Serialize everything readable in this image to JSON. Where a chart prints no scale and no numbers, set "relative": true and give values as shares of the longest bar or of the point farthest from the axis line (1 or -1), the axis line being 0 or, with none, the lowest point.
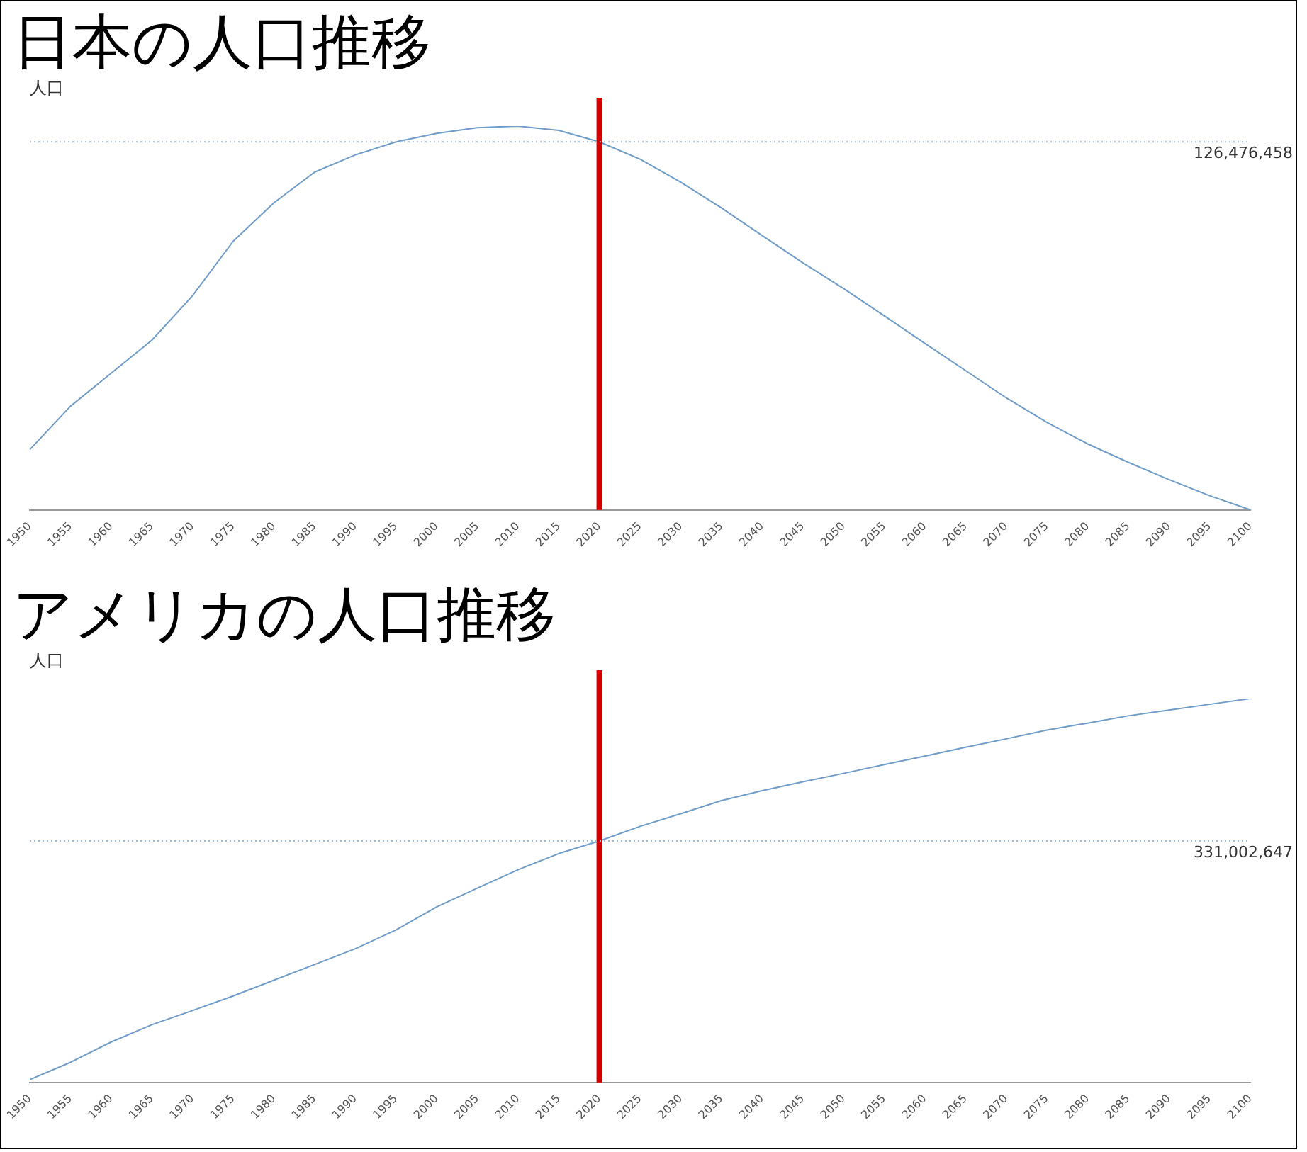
{
  "chart_data": [
    {
      "type": "line",
      "title": "日本の人口推移",
      "ylabel": "人口",
      "relative": true,
      "color": "#6f9cc8",
      "marker": "none",
      "x": [
        1950,
        1955,
        1960,
        1965,
        1970,
        1975,
        1980,
        1985,
        1990,
        1995,
        2000,
        2005,
        2010,
        2015,
        2020,
        2025,
        2030,
        2035,
        2040,
        2045,
        2050,
        2055,
        2060,
        2065,
        2070,
        2075,
        2080,
        2085,
        2090,
        2095,
        2100
      ],
      "values": [
        0.157,
        0.27,
        0.356,
        0.442,
        0.558,
        0.7,
        0.8,
        0.88,
        0.925,
        0.959,
        0.981,
        0.996,
        1,
        0.989,
        0.959,
        0.914,
        0.854,
        0.787,
        0.715,
        0.644,
        0.577,
        0.506,
        0.434,
        0.363,
        0.292,
        0.228,
        0.172,
        0.124,
        0.079,
        0.037,
        0
      ],
      "xlim": [
        1950,
        2100
      ],
      "xticks": [
        1950,
        1955,
        1960,
        1965,
        1970,
        1975,
        1980,
        1985,
        1990,
        1995,
        2000,
        2005,
        2010,
        2015,
        2020,
        2025,
        2030,
        2035,
        2040,
        2045,
        2050,
        2055,
        2060,
        2065,
        2070,
        2075,
        2080,
        2085,
        2090,
        2095,
        2100
      ],
      "ref_lines": [
        {
          "axis": "x",
          "value": 2020,
          "color": "#d00000"
        },
        {
          "axis": "y",
          "value": 0.959,
          "color": "#9bbbd9",
          "line_style": "dotted"
        }
      ],
      "annotations": [
        "126,476,458"
      ]
    },
    {
      "type": "line",
      "title": "アメリカの人口推移",
      "ylabel": "人口",
      "relative": true,
      "color": "#6f9cc8",
      "marker": "none",
      "x": [
        1950,
        1955,
        1960,
        1965,
        1970,
        1975,
        1980,
        1985,
        1990,
        1995,
        2000,
        2005,
        2010,
        2015,
        2020,
        2025,
        2030,
        2035,
        2040,
        2045,
        2050,
        2055,
        2060,
        2065,
        2070,
        2075,
        2080,
        2085,
        2090,
        2095,
        2100
      ],
      "values": [
        0.007,
        0.052,
        0.105,
        0.15,
        0.187,
        0.225,
        0.266,
        0.307,
        0.348,
        0.397,
        0.457,
        0.506,
        0.554,
        0.596,
        0.629,
        0.667,
        0.7,
        0.734,
        0.76,
        0.783,
        0.805,
        0.828,
        0.85,
        0.873,
        0.895,
        0.918,
        0.936,
        0.955,
        0.97,
        0.985,
        1
      ],
      "xlim": [
        1950,
        2100
      ],
      "xticks": [
        1950,
        1955,
        1960,
        1965,
        1970,
        1975,
        1980,
        1985,
        1990,
        1995,
        2000,
        2005,
        2010,
        2015,
        2020,
        2025,
        2030,
        2035,
        2040,
        2045,
        2050,
        2055,
        2060,
        2065,
        2070,
        2075,
        2080,
        2085,
        2090,
        2095,
        2100
      ],
      "ref_lines": [
        {
          "axis": "x",
          "value": 2020,
          "color": "#d00000"
        },
        {
          "axis": "y",
          "value": 0.629,
          "color": "#9bbbd9",
          "line_style": "dotted"
        }
      ],
      "annotations": [
        "331,002,647"
      ]
    }
  ]
}
